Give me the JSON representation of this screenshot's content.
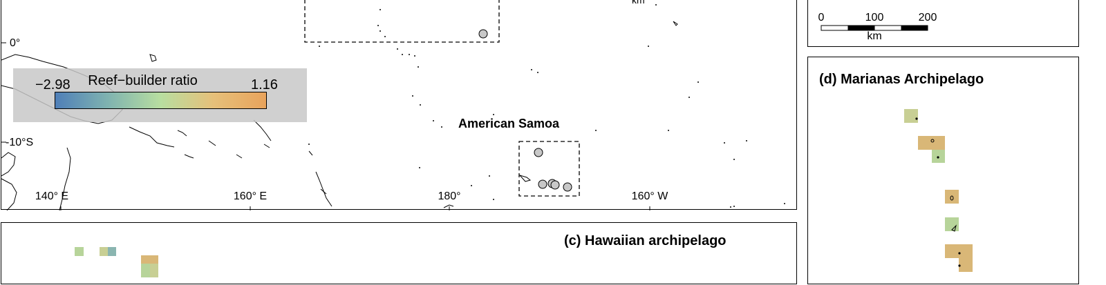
{
  "main_map": {
    "lat_labels": [
      "0°",
      "-10°S"
    ],
    "lon_labels": [
      "140° E",
      "160° E",
      "180°",
      "160° W"
    ],
    "place_labels": {
      "american_samoa": "American Samoa",
      "top_fragment": "km"
    }
  },
  "legend": {
    "title": "Reef−builder ratio",
    "min_label": "−2.98",
    "max_label": "1.16",
    "min_value": -2.98,
    "max_value": 1.16,
    "gradient_colors": [
      "#4f7fb8",
      "#7fb3b0",
      "#b8dea0",
      "#e6c07a",
      "#e8a35c"
    ]
  },
  "scale_bar": {
    "ticks": [
      "0",
      "100",
      "200"
    ],
    "unit": "km"
  },
  "panel_c": {
    "title": "(c) Hawaiian archipelago"
  },
  "panel_d": {
    "title": "(d) Marianas Archipelago"
  },
  "colors": {
    "site_marker": "#c8c8c8",
    "legend_box": "#c8c8c8",
    "cell_green": "#b7d49a",
    "cell_tan": "#d9b777",
    "cell_teal": "#8ab5b0",
    "cell_olive": "#c8cf94"
  }
}
